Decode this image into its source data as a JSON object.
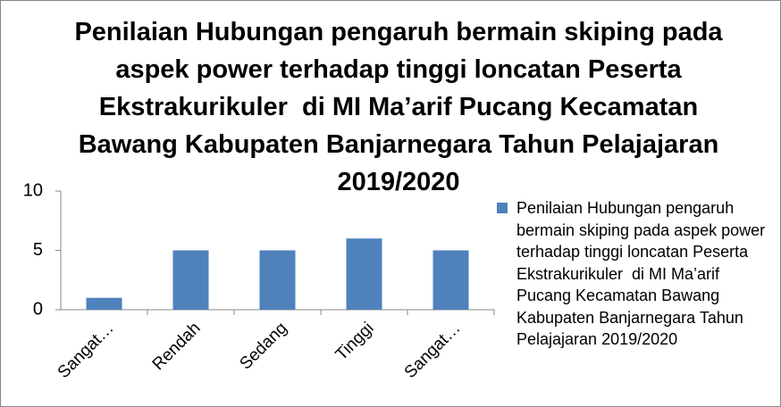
{
  "chart_data": {
    "type": "bar",
    "title": "Penilaian Hubungan pengaruh bermain skiping pada aspek power terhadap tinggi loncatan Peserta Ekstrakurikuler  di MI Ma’arif Pucang Kecamatan Bawang Kabupaten Banjarnegara Tahun Pelajajaran 2019/2020",
    "categories": [
      "Sangat…",
      "Rendah",
      "Sedang",
      "Tinggi",
      "Sangat…"
    ],
    "series": [
      {
        "name": "Penilaian Hubungan pengaruh bermain skiping pada aspek power terhadap tinggi loncatan Peserta Ekstrakurikuler  di MI Ma’arif Pucang Kecamatan Bawang Kabupaten Banjarnegara Tahun Pelajajaran 2019/2020",
        "color": "#4f81bd",
        "values": [
          1,
          5,
          5,
          6,
          5
        ]
      }
    ],
    "ylim": [
      0,
      10
    ],
    "yticks": [
      0,
      5,
      10
    ],
    "legend": "right"
  }
}
